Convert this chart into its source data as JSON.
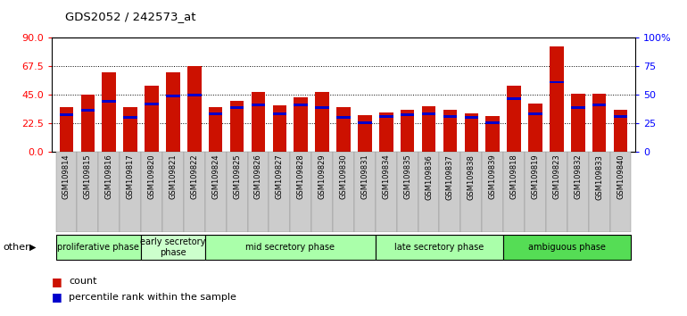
{
  "title": "GDS2052 / 242573_at",
  "samples": [
    "GSM109814",
    "GSM109815",
    "GSM109816",
    "GSM109817",
    "GSM109820",
    "GSM109821",
    "GSM109822",
    "GSM109824",
    "GSM109825",
    "GSM109826",
    "GSM109827",
    "GSM109828",
    "GSM109829",
    "GSM109830",
    "GSM109831",
    "GSM109834",
    "GSM109835",
    "GSM109836",
    "GSM109837",
    "GSM109838",
    "GSM109839",
    "GSM109818",
    "GSM109819",
    "GSM109823",
    "GSM109832",
    "GSM109833",
    "GSM109840"
  ],
  "count": [
    35,
    45,
    63,
    35,
    52,
    63,
    68,
    35,
    40,
    47,
    37,
    43,
    47,
    35,
    29,
    31,
    33,
    36,
    33,
    30,
    28,
    52,
    38,
    83,
    46,
    46,
    33
  ],
  "percentile": [
    29,
    33,
    40,
    27,
    38,
    44,
    45,
    30,
    35,
    37,
    30,
    37,
    35,
    27,
    23,
    28,
    29,
    30,
    28,
    27,
    23,
    42,
    30,
    55,
    35,
    37,
    28
  ],
  "phases": [
    {
      "label": "proliferative phase",
      "start": 0,
      "end": 4,
      "color": "#aaffaa"
    },
    {
      "label": "early secretory\nphase",
      "start": 4,
      "end": 7,
      "color": "#ccffcc"
    },
    {
      "label": "mid secretory phase",
      "start": 7,
      "end": 15,
      "color": "#aaffaa"
    },
    {
      "label": "late secretory phase",
      "start": 15,
      "end": 21,
      "color": "#aaffaa"
    },
    {
      "label": "ambiguous phase",
      "start": 21,
      "end": 27,
      "color": "#55dd55"
    }
  ],
  "ylim_left": [
    0,
    90
  ],
  "ylim_right": [
    0,
    100
  ],
  "left_ticks": [
    0,
    22.5,
    45,
    67.5,
    90
  ],
  "right_ticks": [
    0,
    25,
    50,
    75,
    100
  ],
  "bar_color": "#cc1100",
  "percentile_color": "#0000cc",
  "bar_width": 0.65,
  "legend_count_label": "count",
  "legend_pct_label": "percentile rank within the sample",
  "grid_lines": [
    22.5,
    45,
    67.5
  ],
  "xticklabel_bg": "#cccccc",
  "right_tick_labels": [
    "0",
    "25",
    "50",
    "75",
    "100%"
  ]
}
